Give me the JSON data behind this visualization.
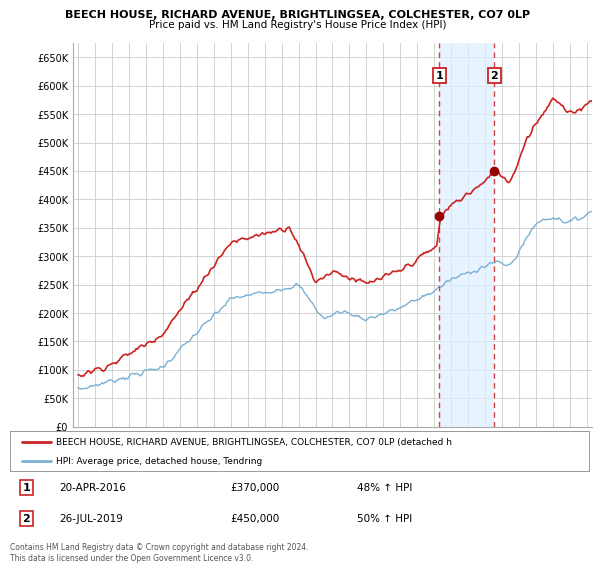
{
  "title1": "BEECH HOUSE, RICHARD AVENUE, BRIGHTLINGSEA, COLCHESTER, CO7 0LP",
  "title2": "Price paid vs. HM Land Registry's House Price Index (HPI)",
  "ylabel_ticks": [
    "£0",
    "£50K",
    "£100K",
    "£150K",
    "£200K",
    "£250K",
    "£300K",
    "£350K",
    "£400K",
    "£450K",
    "£500K",
    "£550K",
    "£600K",
    "£650K"
  ],
  "ytick_values": [
    0,
    50000,
    100000,
    150000,
    200000,
    250000,
    300000,
    350000,
    400000,
    450000,
    500000,
    550000,
    600000,
    650000
  ],
  "sale1_date": 2016.29,
  "sale1_price": 370000,
  "sale1_label": "1",
  "sale2_date": 2019.55,
  "sale2_price": 450000,
  "sale2_label": "2",
  "legend_line1": "BEECH HOUSE, RICHARD AVENUE, BRIGHTLINGSEA, COLCHESTER, CO7 0LP (detached h",
  "legend_line2": "HPI: Average price, detached house, Tendring",
  "footer": "Contains HM Land Registry data © Crown copyright and database right 2024.\nThis data is licensed under the Open Government Licence v3.0.",
  "hpi_color": "#7ab0d4",
  "price_color": "#cc2222",
  "sale_marker_color": "#990000",
  "vline_color": "#cc4444",
  "shade_color": "#ddeeff",
  "background_color": "#ffffff",
  "grid_color": "#cccccc",
  "xlim_start": 1994.7,
  "xlim_end": 2025.3,
  "ylim_min": 0,
  "ylim_max": 675000
}
